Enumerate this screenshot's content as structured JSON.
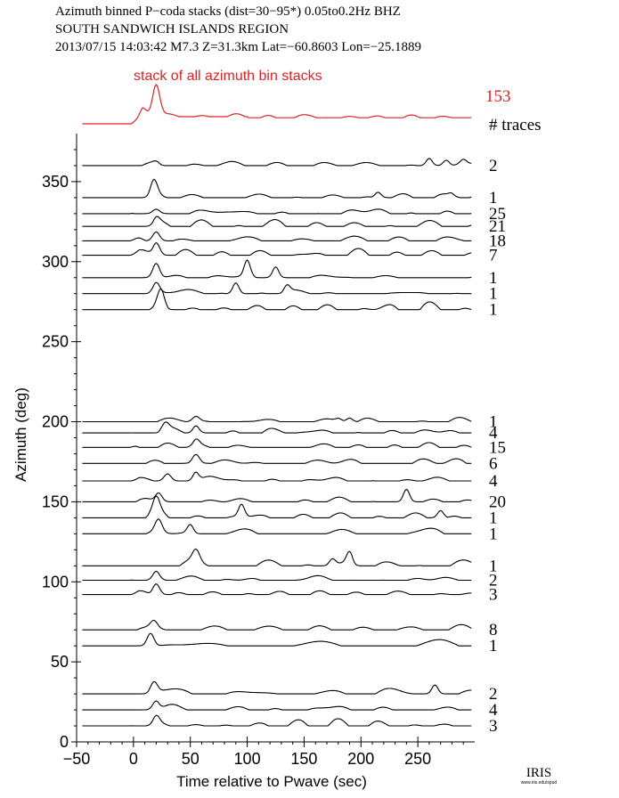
{
  "header": {
    "line1": "Azimuth binned P−coda stacks (dist=30−95*)  0.05to0.2Hz  BHZ",
    "line2": "SOUTH SANDWICH ISLANDS REGION",
    "line3": "2013/07/15  14:03:42   M7.3   Z=31.3km Lat=−60.8603 Lon=−25.1889"
  },
  "logo": {
    "main": "IRIS",
    "sub": "www.iris.edu/spud"
  },
  "colors": {
    "stack": "#e02020",
    "trace": "#000000",
    "axis": "#000000"
  },
  "chart_data": {
    "type": "line",
    "title": "",
    "xlabel": "Time relative to Pwave (sec)",
    "ylabel": "Azimuth (deg)",
    "xlim": [
      -50,
      300
    ],
    "ylim": [
      0,
      380
    ],
    "xticks": [
      -50,
      0,
      50,
      100,
      150,
      200,
      250
    ],
    "yticks": [
      0,
      50,
      100,
      150,
      200,
      250,
      300,
      350
    ],
    "stack": {
      "label": "stack of all azimuth bin stacks",
      "count": "153",
      "color": "#e02020"
    },
    "count_header": "# traces",
    "traces": [
      {
        "azimuth": 360,
        "count": "2",
        "peak_time": 20,
        "peak_amp": 3,
        "late": [
          [
            260,
            8
          ],
          [
            275,
            6
          ],
          [
            290,
            5
          ]
        ]
      },
      {
        "azimuth": 340,
        "count": "1",
        "peak_time": 18,
        "peak_amp": 18,
        "late": [
          [
            215,
            6
          ],
          [
            280,
            4
          ]
        ]
      },
      {
        "azimuth": 330,
        "count": "25",
        "peak_time": 20,
        "peak_amp": 5,
        "late": []
      },
      {
        "azimuth": 322,
        "count": "21",
        "peak_time": 20,
        "peak_amp": 8,
        "late": []
      },
      {
        "azimuth": 313,
        "count": "18",
        "peak_time": 20,
        "peak_amp": 10,
        "late": []
      },
      {
        "azimuth": 304,
        "count": "7",
        "peak_time": 20,
        "peak_amp": 14,
        "late": []
      },
      {
        "azimuth": 290,
        "count": "1",
        "peak_time": 20,
        "peak_amp": 16,
        "late": [
          [
            100,
            18
          ],
          [
            125,
            12
          ]
        ]
      },
      {
        "azimuth": 280,
        "count": "1",
        "peak_time": 20,
        "peak_amp": 12,
        "late": [
          [
            90,
            12
          ],
          [
            135,
            8
          ]
        ]
      },
      {
        "azimuth": 270,
        "count": "1",
        "peak_time": 24,
        "peak_amp": 20,
        "late": []
      },
      {
        "azimuth": 200,
        "count": "1",
        "peak_time": 55,
        "peak_amp": 6,
        "late": [
          [
            180,
            4
          ],
          [
            190,
            4
          ]
        ]
      },
      {
        "azimuth": 193,
        "count": "4",
        "peak_time": 28,
        "peak_amp": 8,
        "late": [
          [
            55,
            8
          ]
        ]
      },
      {
        "azimuth": 184,
        "count": "15",
        "peak_time": 55,
        "peak_amp": 8,
        "late": []
      },
      {
        "azimuth": 174,
        "count": "6",
        "peak_time": 55,
        "peak_amp": 10,
        "late": []
      },
      {
        "azimuth": 163,
        "count": "4",
        "peak_time": 30,
        "peak_amp": 8,
        "late": [
          [
            55,
            10
          ]
        ]
      },
      {
        "azimuth": 150,
        "count": "20",
        "peak_time": 22,
        "peak_amp": 10,
        "late": [
          [
            240,
            14
          ]
        ]
      },
      {
        "azimuth": 140,
        "count": "1",
        "peak_time": 20,
        "peak_amp": 16,
        "late": [
          [
            95,
            14
          ],
          [
            270,
            8
          ]
        ]
      },
      {
        "azimuth": 130,
        "count": "1",
        "peak_time": 22,
        "peak_amp": 14,
        "late": [
          [
            50,
            10
          ]
        ]
      },
      {
        "azimuth": 110,
        "count": "1",
        "peak_time": 55,
        "peak_amp": 12,
        "late": [
          [
            190,
            14
          ],
          [
            175,
            8
          ]
        ]
      },
      {
        "azimuth": 101,
        "count": "2",
        "peak_time": 20,
        "peak_amp": 10,
        "late": []
      },
      {
        "azimuth": 92,
        "count": "3",
        "peak_time": 20,
        "peak_amp": 12,
        "late": []
      },
      {
        "azimuth": 70,
        "count": "8",
        "peak_time": 18,
        "peak_amp": 8,
        "late": []
      },
      {
        "azimuth": 60,
        "count": "1",
        "peak_time": 15,
        "peak_amp": 14,
        "late": []
      },
      {
        "azimuth": 30,
        "count": "2",
        "peak_time": 18,
        "peak_amp": 12,
        "late": [
          [
            265,
            10
          ]
        ]
      },
      {
        "azimuth": 20,
        "count": "4",
        "peak_time": 20,
        "peak_amp": 10,
        "late": []
      },
      {
        "azimuth": 10,
        "count": "3",
        "peak_time": 20,
        "peak_amp": 10,
        "late": []
      }
    ]
  }
}
